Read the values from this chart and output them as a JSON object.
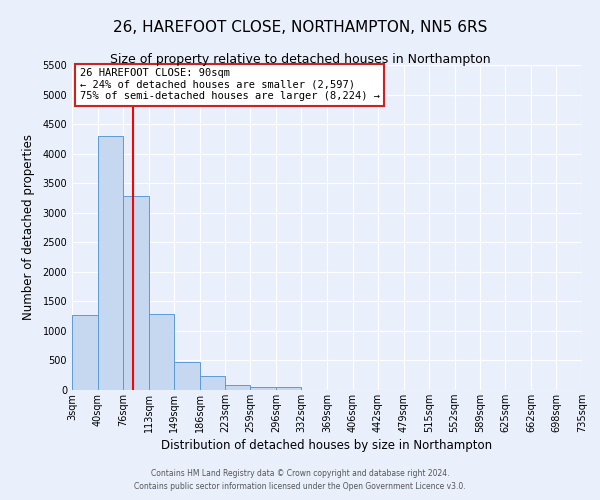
{
  "title": "26, HAREFOOT CLOSE, NORTHAMPTON, NN5 6RS",
  "subtitle": "Size of property relative to detached houses in Northampton",
  "xlabel": "Distribution of detached houses by size in Northampton",
  "ylabel": "Number of detached properties",
  "bar_color": "#c5d8f0",
  "bar_edge_color": "#5b9bd5",
  "red_line_x": 90,
  "annotation_title": "26 HAREFOOT CLOSE: 90sqm",
  "annotation_line1": "← 24% of detached houses are smaller (2,597)",
  "annotation_line2": "75% of semi-detached houses are larger (8,224) →",
  "bin_edges": [
    3,
    40,
    76,
    113,
    149,
    186,
    223,
    259,
    296,
    332,
    369,
    406,
    442,
    479,
    515,
    552,
    589,
    625,
    662,
    698,
    735
  ],
  "bin_values": [
    1270,
    4300,
    3280,
    1280,
    480,
    230,
    90,
    55,
    45,
    0,
    0,
    0,
    0,
    0,
    0,
    0,
    0,
    0,
    0,
    0
  ],
  "ylim": [
    0,
    5500
  ],
  "yticks": [
    0,
    500,
    1000,
    1500,
    2000,
    2500,
    3000,
    3500,
    4000,
    4500,
    5000,
    5500
  ],
  "footer1": "Contains HM Land Registry data © Crown copyright and database right 2024.",
  "footer2": "Contains public sector information licensed under the Open Government Licence v3.0.",
  "background_color": "#eaf0fb",
  "plot_background": "#eaf0fb",
  "grid_color": "#ffffff",
  "title_fontsize": 11,
  "subtitle_fontsize": 9,
  "tick_label_fontsize": 7,
  "footer_fontsize": 5.5
}
